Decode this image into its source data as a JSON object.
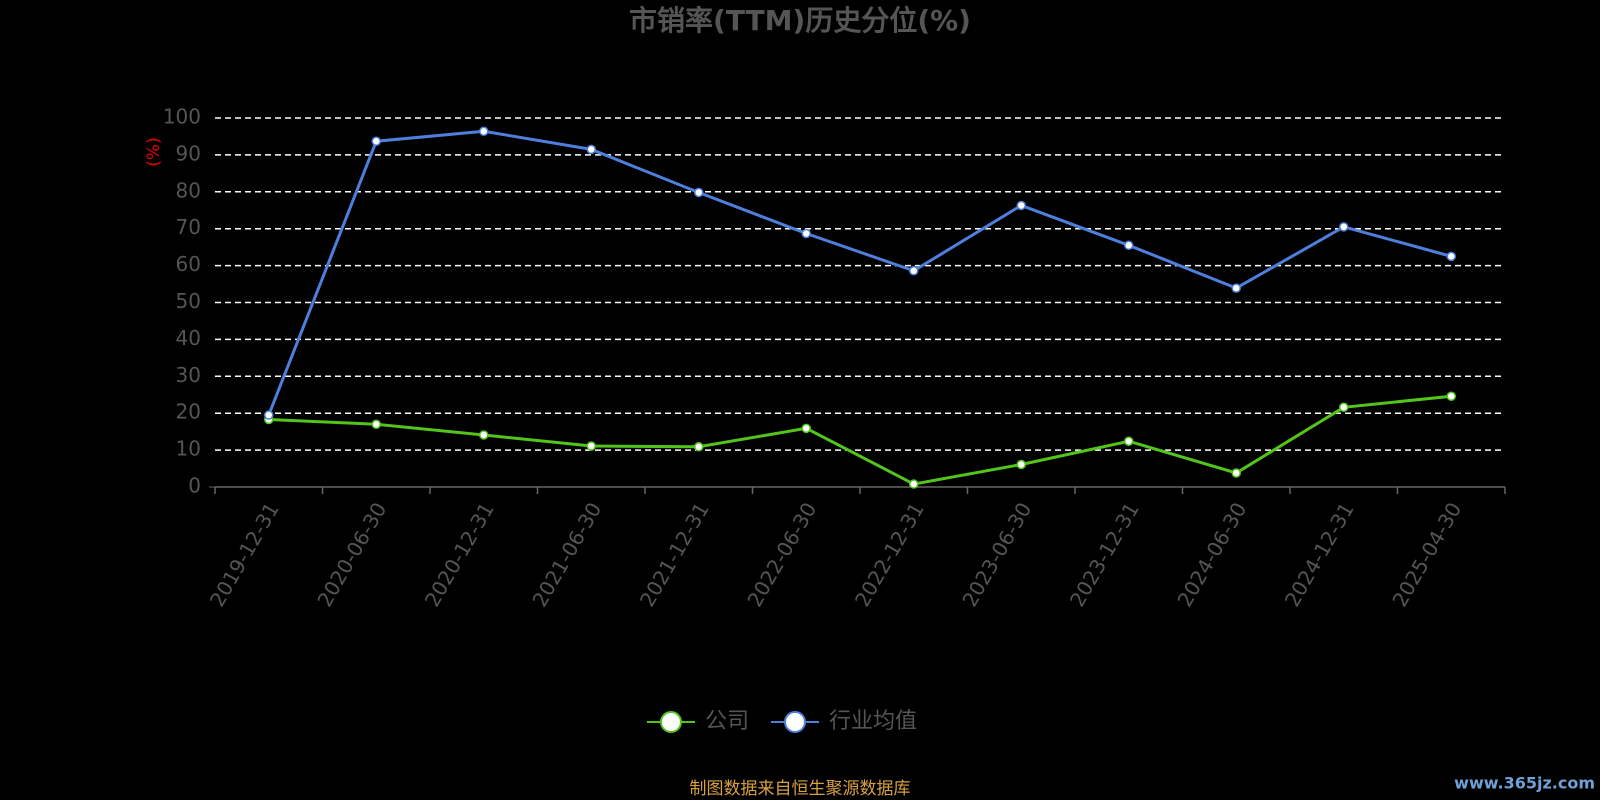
{
  "chart_data": {
    "type": "line",
    "title": "市销率(TTM)历史分位(%)",
    "y_label": "(%)",
    "categories": [
      "2019-12-31",
      "2020-06-30",
      "2020-12-31",
      "2021-06-30",
      "2021-12-31",
      "2022-06-30",
      "2022-12-31",
      "2023-06-30",
      "2023-12-31",
      "2024-06-30",
      "2024-12-31",
      "2025-04-30"
    ],
    "series": [
      {
        "name": "公司",
        "color": "#52c41a",
        "values": [
          18.3,
          17.0,
          14.1,
          11.1,
          10.9,
          15.9,
          0.8,
          6.1,
          12.4,
          3.8,
          21.6,
          24.6
        ]
      },
      {
        "name": "行业均值",
        "color": "#4e7fdc",
        "values": [
          19.5,
          93.7,
          96.4,
          91.5,
          79.8,
          68.7,
          58.6,
          76.3,
          65.5,
          53.9,
          70.5,
          62.5
        ]
      }
    ],
    "ylim": [
      0,
      100
    ],
    "yticks": [
      0,
      10,
      20,
      30,
      40,
      50,
      60,
      70,
      80,
      90,
      100
    ],
    "grid": true,
    "legend": "bottom",
    "source": "制图数据来自恒生聚源数据库",
    "watermark": "www.365jz.com"
  }
}
